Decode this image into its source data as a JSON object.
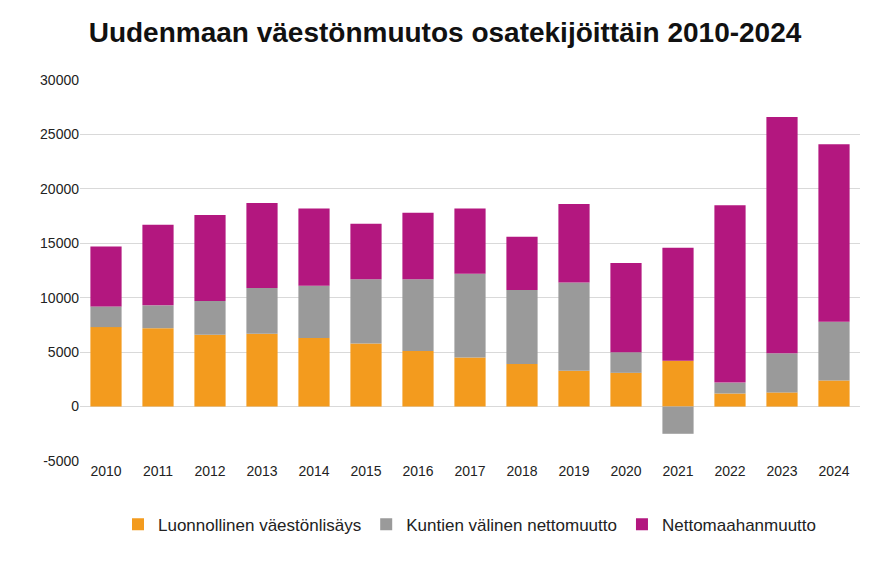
{
  "chart_data": {
    "type": "bar",
    "stacked": true,
    "title": "Uudenmaan väestönmuutos osatekijöittäin 2010-2024",
    "categories": [
      "2010",
      "2011",
      "2012",
      "2013",
      "2014",
      "2015",
      "2016",
      "2017",
      "2018",
      "2019",
      "2020",
      "2021",
      "2022",
      "2023",
      "2024"
    ],
    "series": [
      {
        "name": "Luonnollinen väestönlisäys",
        "color": "#f39b1e",
        "values": [
          7300,
          7200,
          6600,
          6700,
          6300,
          5800,
          5100,
          4500,
          3900,
          3300,
          3100,
          4200,
          1200,
          1300,
          2400
        ]
      },
      {
        "name": "Kuntien välinen nettomuutto",
        "color": "#9a9a9a",
        "values": [
          1900,
          2100,
          3100,
          4200,
          4800,
          5900,
          6600,
          7700,
          6800,
          8100,
          1900,
          -2500,
          1000,
          3600,
          5400
        ]
      },
      {
        "name": "Nettomaahanmuutto",
        "color": "#b3177f",
        "values": [
          5500,
          7400,
          7900,
          7800,
          7100,
          5100,
          6100,
          6000,
          4900,
          7200,
          8200,
          10400,
          16300,
          21700,
          16300
        ]
      }
    ],
    "ylim": [
      -5000,
      30000
    ],
    "yticks": [
      -5000,
      0,
      5000,
      10000,
      15000,
      20000,
      25000,
      30000
    ],
    "grid": true,
    "legend": "bottom"
  }
}
